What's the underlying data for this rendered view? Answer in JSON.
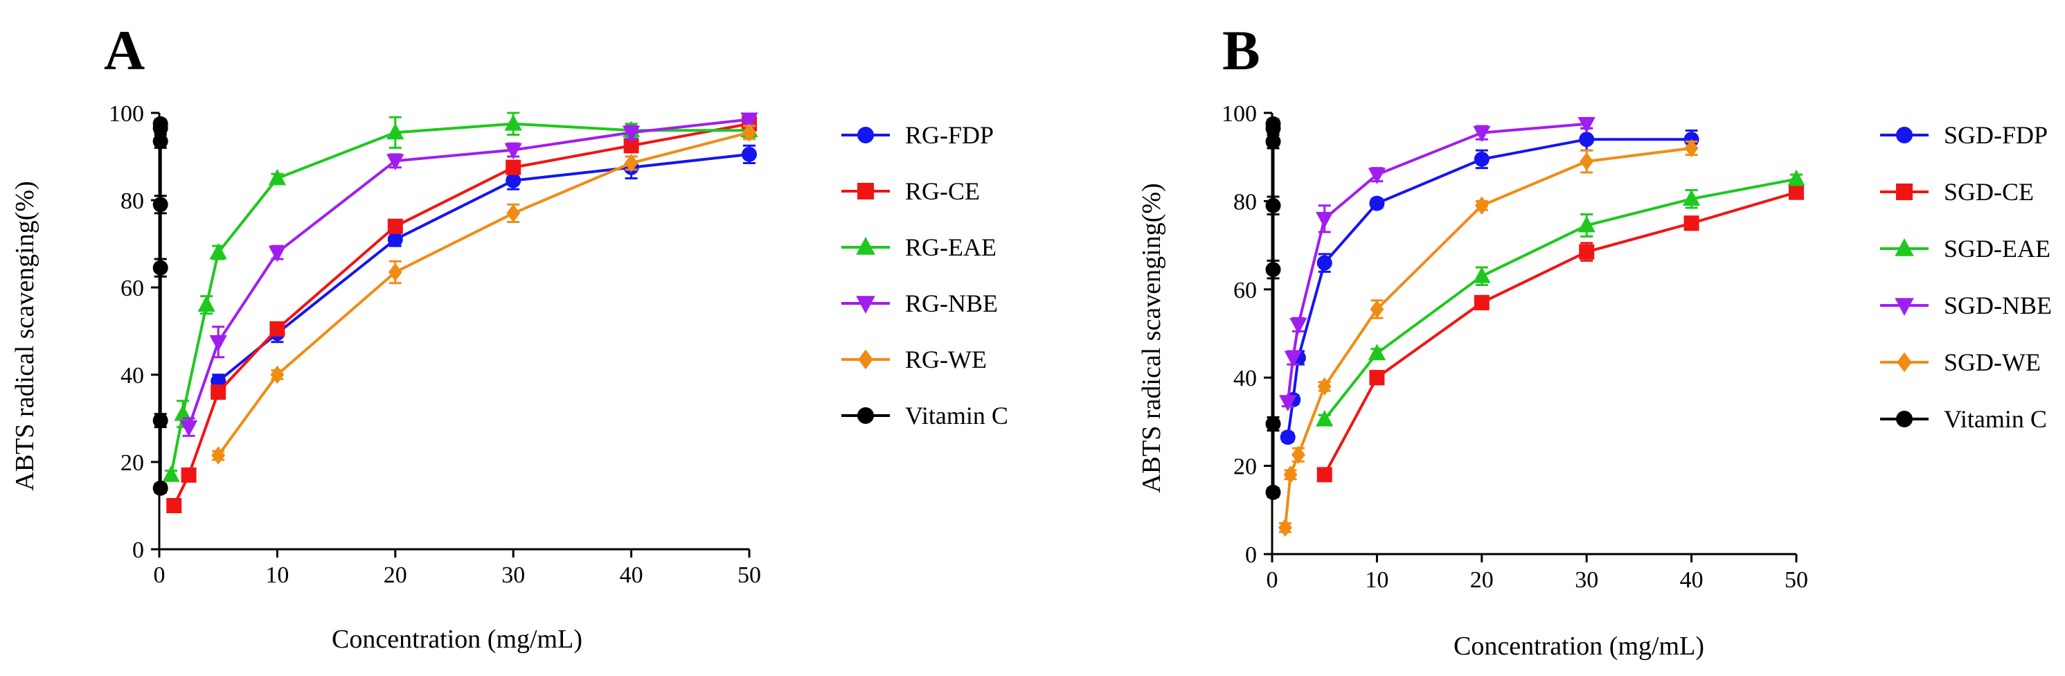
{
  "chart_data": [
    {
      "type": "line",
      "panel_label": "A",
      "xlabel": "Concentration (mg/mL)",
      "ylabel": "ABTS radical scavenging(%)",
      "xlim": [
        0,
        50
      ],
      "ylim": [
        0,
        100
      ],
      "xticks": [
        0,
        10,
        20,
        30,
        40,
        50
      ],
      "yticks": [
        0,
        20,
        40,
        60,
        80,
        100
      ],
      "legend_position": "right",
      "series": [
        {
          "name": "RG-FDP",
          "color": "#1515f0",
          "marker": "circle",
          "x": [
            5,
            10,
            20,
            30,
            40,
            50
          ],
          "y": [
            38.5,
            49.5,
            71,
            84.5,
            87.5,
            90.5
          ],
          "err": [
            1.5,
            2,
            1.5,
            2,
            2.5,
            2
          ]
        },
        {
          "name": "RG-CE",
          "color": "#f01515",
          "marker": "square",
          "x": [
            1.25,
            2.5,
            5,
            10,
            20,
            30,
            40,
            50
          ],
          "y": [
            10,
            17,
            36,
            50.5,
            74,
            87.5,
            92.5,
            97.5
          ],
          "err": [
            1,
            1,
            1.5,
            1.5,
            1.5,
            1.5,
            1.5,
            1.5
          ]
        },
        {
          "name": "RG-EAE",
          "color": "#1ec81e",
          "marker": "triangle-up",
          "x": [
            1,
            2,
            4,
            5,
            10,
            20,
            30,
            40,
            50
          ],
          "y": [
            17,
            31,
            56,
            68,
            85,
            95.5,
            97.5,
            96,
            96
          ],
          "err": [
            1,
            3,
            2,
            1.5,
            1,
            3.5,
            2.5,
            1.5,
            1.5
          ]
        },
        {
          "name": "RG-NBE",
          "color": "#a01ef0",
          "marker": "triangle-down",
          "x": [
            2.5,
            5,
            10,
            20,
            30,
            40,
            50
          ],
          "y": [
            28,
            47.5,
            68,
            89,
            91.5,
            95.5,
            98.5
          ],
          "err": [
            2,
            3.5,
            1.5,
            1.5,
            1.5,
            1.5,
            1
          ]
        },
        {
          "name": "RG-WE",
          "color": "#f08c14",
          "marker": "diamond",
          "x": [
            5,
            10,
            20,
            30,
            40,
            50
          ],
          "y": [
            21.5,
            40,
            63.5,
            77,
            88.5,
            95.5
          ],
          "err": [
            1,
            1,
            2.5,
            2,
            1.5,
            1.5
          ]
        },
        {
          "name": "Vitamin C",
          "color": "#000000",
          "marker": "circle",
          "x": [
            0.1,
            0.1,
            0.1,
            0.1,
            0.1,
            0.1,
            0.1
          ],
          "y": [
            14,
            29.5,
            64.5,
            79,
            93.5,
            96.5,
            97.5
          ],
          "err": [
            1,
            1.5,
            2,
            2,
            1.5,
            1,
            1
          ]
        }
      ]
    },
    {
      "type": "line",
      "panel_label": "B",
      "xlabel": "Concentration (mg/mL)",
      "ylabel": "ABTS  radical  scavenging(%)",
      "xlim": [
        0,
        50
      ],
      "ylim": [
        0,
        100
      ],
      "xticks": [
        0,
        10,
        20,
        30,
        40,
        50
      ],
      "yticks": [
        0,
        20,
        40,
        60,
        80,
        100
      ],
      "legend_position": "right",
      "series": [
        {
          "name": "SGD-FDP",
          "color": "#1515f0",
          "marker": "circle",
          "x": [
            1.5,
            2,
            2.5,
            5,
            10,
            20,
            30,
            40
          ],
          "y": [
            26.5,
            35,
            44.5,
            66,
            79.5,
            89.5,
            94,
            94
          ],
          "err": [
            1,
            1,
            1.5,
            2,
            1,
            2,
            2.5,
            2
          ]
        },
        {
          "name": "SGD-CE",
          "color": "#f01515",
          "marker": "square",
          "x": [
            5,
            10,
            20,
            30,
            40,
            50
          ],
          "y": [
            18,
            40,
            57,
            68.5,
            75,
            82
          ],
          "err": [
            1,
            1.5,
            1.5,
            2,
            1.5,
            1
          ]
        },
        {
          "name": "SGD-EAE",
          "color": "#1ec81e",
          "marker": "triangle-up",
          "x": [
            5,
            10,
            20,
            30,
            40,
            50
          ],
          "y": [
            30.5,
            45.5,
            63,
            74.5,
            80.5,
            85
          ],
          "err": [
            1,
            1,
            2,
            2.5,
            2,
            1
          ]
        },
        {
          "name": "SGD-NBE",
          "color": "#a01ef0",
          "marker": "triangle-down",
          "x": [
            1.5,
            2,
            2.5,
            5,
            10,
            20,
            30
          ],
          "y": [
            34.5,
            44.5,
            52,
            76,
            86,
            95.5,
            97.5
          ],
          "err": [
            1,
            1.5,
            1.5,
            3,
            1.5,
            1.5,
            1
          ]
        },
        {
          "name": "SGD-WE",
          "color": "#f08c14",
          "marker": "diamond",
          "x": [
            1.25,
            1.75,
            2.5,
            5,
            10,
            20,
            30,
            40
          ],
          "y": [
            6,
            18,
            22.5,
            38,
            55.5,
            79,
            89,
            92
          ],
          "err": [
            1,
            1,
            1.5,
            1,
            2,
            1,
            2.5,
            1.5
          ]
        },
        {
          "name": "Vitamin C",
          "color": "#000000",
          "marker": "circle",
          "x": [
            0.1,
            0.1,
            0.1,
            0.1,
            0.1,
            0.1,
            0.1
          ],
          "y": [
            14,
            29.5,
            64.5,
            79,
            93.5,
            96.5,
            97.5
          ],
          "err": [
            1,
            1.5,
            2,
            2,
            1.5,
            1,
            1
          ]
        }
      ]
    }
  ]
}
